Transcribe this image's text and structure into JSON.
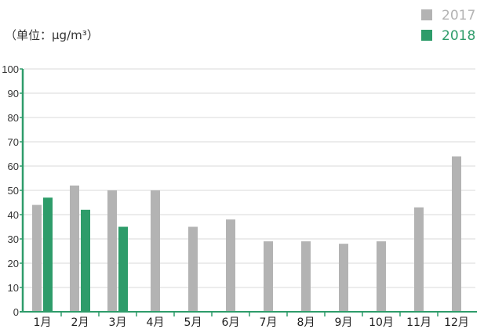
{
  "chart_data": {
    "type": "bar",
    "unit_note": "（单位：μg/m³）",
    "categories": [
      "1月",
      "2月",
      "3月",
      "4月",
      "5月",
      "6月",
      "7月",
      "8月",
      "9月",
      "10月",
      "11月",
      "12月"
    ],
    "series": [
      {
        "name": "2017",
        "color": "#b3b3b3",
        "values": [
          44,
          52,
          50,
          50,
          35,
          38,
          29,
          29,
          28,
          29,
          43,
          64
        ]
      },
      {
        "name": "2018",
        "color": "#2e9c6a",
        "values": [
          47,
          42,
          35,
          null,
          null,
          null,
          null,
          null,
          null,
          null,
          null,
          null
        ]
      }
    ],
    "ylim": [
      0,
      100
    ],
    "yticks": [
      0,
      10,
      20,
      30,
      40,
      50,
      60,
      70,
      80,
      90,
      100
    ],
    "grid": true,
    "legend_position": "top-right",
    "axis_color": "#2e9c6a",
    "grid_color": "#d9d9d9"
  }
}
